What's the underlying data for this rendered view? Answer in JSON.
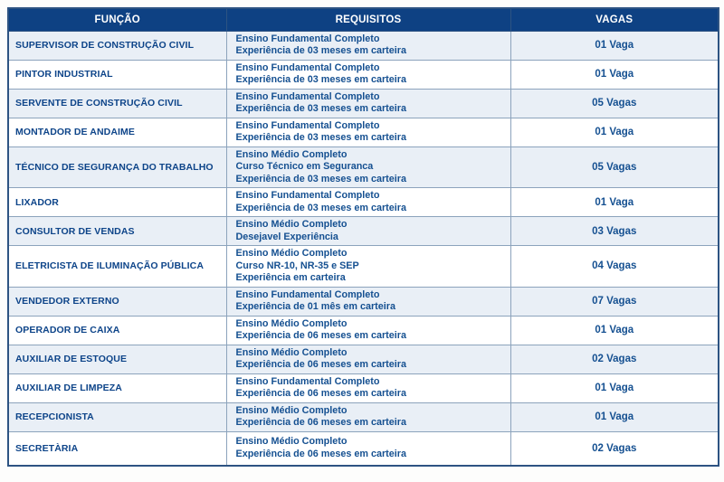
{
  "colors": {
    "header_bg": "#0e4183",
    "header_text": "#ffffff",
    "row_alt_bg": "#e9eff6",
    "row_bg": "#ffffff",
    "title_text": "#0d4489",
    "body_text": "#155091",
    "border_outer": "#2d5382",
    "border_inner": "#8ca3bc"
  },
  "table": {
    "columns": [
      {
        "key": "funcao",
        "label": "FUNÇÃO"
      },
      {
        "key": "requisitos",
        "label": "REQUISITOS"
      },
      {
        "key": "vagas",
        "label": "VAGAS"
      }
    ],
    "rows": [
      {
        "funcao": "SUPERVISOR DE CONSTRUÇÃO CIVIL",
        "requisitos": [
          "Ensino Fundamental Completo",
          "Experiência de 03 meses em carteira"
        ],
        "vagas": "01 Vaga"
      },
      {
        "funcao": "PINTOR INDUSTRIAL",
        "requisitos": [
          "Ensino Fundamental Completo",
          "Experiência de 03 meses em carteira"
        ],
        "vagas": "01 Vaga"
      },
      {
        "funcao": "SERVENTE DE CONSTRUÇÃO CIVIL",
        "requisitos": [
          "Ensino Fundamental Completo",
          "Experiência de 03 meses em carteira"
        ],
        "vagas": "05 Vagas"
      },
      {
        "funcao": "MONTADOR DE ANDAIME",
        "requisitos": [
          "Ensino Fundamental Completo",
          "Experiência de 03 meses em carteira"
        ],
        "vagas": "01 Vaga"
      },
      {
        "funcao": "TÉCNICO DE SEGURANÇA DO TRABALHO",
        "requisitos": [
          "Ensino Médio Completo",
          "Curso Técnico em Seguranca",
          "Experiência de 03 meses em carteira"
        ],
        "vagas": "05 Vagas"
      },
      {
        "funcao": "LIXADOR",
        "requisitos": [
          "Ensino Fundamental Completo",
          "Experiência de 03 meses em carteira"
        ],
        "vagas": "01 Vaga"
      },
      {
        "funcao": "CONSULTOR DE VENDAS",
        "requisitos": [
          "Ensino Médio Completo",
          "Desejavel Experiência"
        ],
        "vagas": "03 Vagas"
      },
      {
        "funcao": "ELETRICISTA DE ILUMINAÇÃO PÚBLICA",
        "requisitos": [
          "Ensino Médio Completo",
          "Curso NR-10, NR-35 e SEP",
          "Experiência em carteira"
        ],
        "vagas": "04 Vagas"
      },
      {
        "funcao": "VENDEDOR EXTERNO",
        "requisitos": [
          "Ensino Fundamental Completo",
          "Experiência de 01 mês em carteira"
        ],
        "vagas": "07 Vagas"
      },
      {
        "funcao": "OPERADOR DE CAIXA",
        "requisitos": [
          "Ensino Médio Completo",
          "Experiência de 06 meses em carteira"
        ],
        "vagas": "01 Vaga"
      },
      {
        "funcao": "AUXILIAR DE ESTOQUE",
        "requisitos": [
          "Ensino Médio Completo",
          "Experiência de 06 meses em carteira"
        ],
        "vagas": "02 Vagas"
      },
      {
        "funcao": "AUXILIAR DE LIMPEZA",
        "requisitos": [
          "Ensino Fundamental Completo",
          "Experiência de 06 meses em carteira"
        ],
        "vagas": "01 Vaga"
      },
      {
        "funcao": "RECEPCIONISTA",
        "requisitos": [
          "Ensino Médio Completo",
          "Experiência de 06 meses em carteira"
        ],
        "vagas": "01 Vaga"
      },
      {
        "funcao": "SECRETÀRIA",
        "requisitos": [
          "Ensino Médio Completo",
          "Experiência de 06 meses em carteira"
        ],
        "vagas": "02 Vagas"
      }
    ]
  }
}
